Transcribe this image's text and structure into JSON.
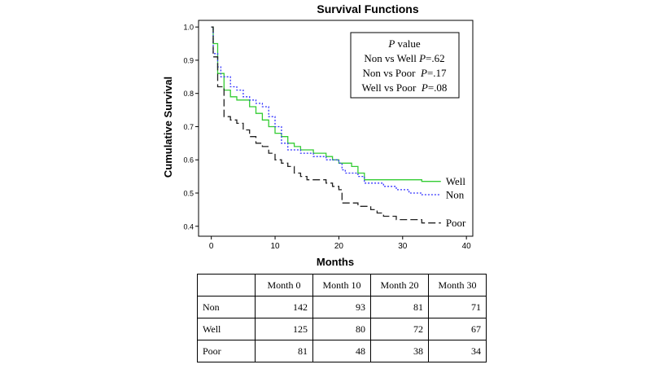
{
  "chart_data": {
    "type": "line",
    "title": "Survival Functions",
    "xlabel": "Months",
    "ylabel": "Cumulative Survival",
    "xlim": [
      -2,
      41
    ],
    "ylim": [
      0.37,
      1.02
    ],
    "x_ticks": [
      0,
      10,
      20,
      30,
      40
    ],
    "y_ticks": [
      0.4,
      0.5,
      0.6,
      0.7,
      0.8,
      0.9,
      1.0
    ],
    "y_tick_labels": [
      "0.4",
      "0.5",
      "0.6",
      "0.7",
      "0.8",
      "0.9",
      "1.0"
    ],
    "grid": false,
    "series": [
      {
        "name": "Well",
        "color": "#33cc33",
        "style": "solid",
        "steps": [
          [
            0,
            1.0
          ],
          [
            0.3,
            0.95
          ],
          [
            1,
            0.86
          ],
          [
            2,
            0.81
          ],
          [
            3,
            0.79
          ],
          [
            4,
            0.78
          ],
          [
            6,
            0.76
          ],
          [
            7,
            0.74
          ],
          [
            8,
            0.72
          ],
          [
            9,
            0.7
          ],
          [
            10,
            0.68
          ],
          [
            11,
            0.67
          ],
          [
            12,
            0.65
          ],
          [
            13,
            0.64
          ],
          [
            14,
            0.63
          ],
          [
            16,
            0.62
          ],
          [
            18,
            0.61
          ],
          [
            19,
            0.6
          ],
          [
            20,
            0.59
          ],
          [
            22,
            0.58
          ],
          [
            23,
            0.56
          ],
          [
            24,
            0.54
          ],
          [
            30,
            0.54
          ],
          [
            33,
            0.535
          ],
          [
            36,
            0.535
          ]
        ]
      },
      {
        "name": "Non",
        "color": "#3333ff",
        "style": "dotted",
        "steps": [
          [
            0,
            1.0
          ],
          [
            0.3,
            0.92
          ],
          [
            1,
            0.88
          ],
          [
            1.5,
            0.85
          ],
          [
            3,
            0.82
          ],
          [
            4,
            0.81
          ],
          [
            5,
            0.79
          ],
          [
            6,
            0.78
          ],
          [
            7,
            0.77
          ],
          [
            8,
            0.76
          ],
          [
            9,
            0.73
          ],
          [
            10,
            0.7
          ],
          [
            11,
            0.65
          ],
          [
            12,
            0.63
          ],
          [
            14,
            0.62
          ],
          [
            16,
            0.61
          ],
          [
            18,
            0.6
          ],
          [
            20,
            0.59
          ],
          [
            20.5,
            0.57
          ],
          [
            21,
            0.56
          ],
          [
            23,
            0.55
          ],
          [
            24,
            0.53
          ],
          [
            27,
            0.52
          ],
          [
            29,
            0.51
          ],
          [
            31,
            0.5
          ],
          [
            33,
            0.495
          ],
          [
            36,
            0.495
          ]
        ]
      },
      {
        "name": "Poor",
        "color": "#222222",
        "style": "dashed",
        "steps": [
          [
            0,
            1.0
          ],
          [
            0.3,
            0.91
          ],
          [
            1,
            0.82
          ],
          [
            2,
            0.73
          ],
          [
            3,
            0.72
          ],
          [
            4,
            0.71
          ],
          [
            5,
            0.69
          ],
          [
            6,
            0.67
          ],
          [
            7,
            0.65
          ],
          [
            8,
            0.64
          ],
          [
            9,
            0.62
          ],
          [
            10,
            0.6
          ],
          [
            11,
            0.59
          ],
          [
            12,
            0.58
          ],
          [
            13,
            0.56
          ],
          [
            14,
            0.55
          ],
          [
            15,
            0.54
          ],
          [
            18,
            0.53
          ],
          [
            19,
            0.52
          ],
          [
            20,
            0.51
          ],
          [
            20.5,
            0.47
          ],
          [
            23,
            0.46
          ],
          [
            25,
            0.45
          ],
          [
            26,
            0.44
          ],
          [
            27,
            0.43
          ],
          [
            29,
            0.42
          ],
          [
            33,
            0.41
          ],
          [
            36,
            0.41
          ]
        ]
      }
    ],
    "annotation": {
      "header_italic": "P",
      "header_rest": " value",
      "lines": [
        {
          "pre": "Non vs Well ",
          "p": "P",
          "post": "=.62"
        },
        {
          "pre": "Non vs Poor  ",
          "p": "P",
          "post": "=.17"
        },
        {
          "pre": "Well vs Poor  ",
          "p": "P",
          "post": "=.08"
        }
      ]
    }
  },
  "table": {
    "headers": [
      "",
      "Month 0",
      "Month 10",
      "Month 20",
      "Month 30"
    ],
    "rows": [
      {
        "label": "Non",
        "values": [
          "142",
          "93",
          "81",
          "71"
        ]
      },
      {
        "label": "Well",
        "values": [
          "125",
          "80",
          "72",
          "67"
        ]
      },
      {
        "label": "Poor",
        "values": [
          "81",
          "48",
          "38",
          "34"
        ]
      }
    ]
  }
}
